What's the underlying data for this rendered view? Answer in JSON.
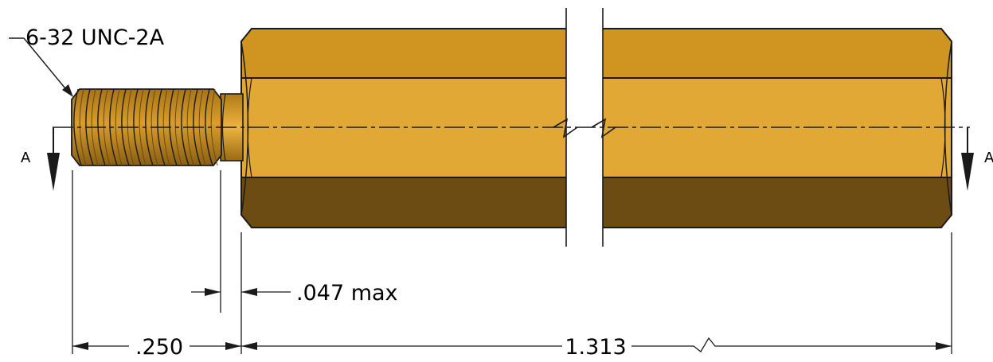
{
  "callouts": {
    "thread_spec": "6-32 UNC-2A"
  },
  "section": {
    "label_left": "A",
    "label_right": "A"
  },
  "dimensions": {
    "thread_length": ".250",
    "shoulder_gap": ".047 max",
    "body_length": "1.313"
  },
  "colors": {
    "brass_top": "#cf9520",
    "brass_mid": "#e2a836",
    "brass_bottom": "#6d4c14",
    "outline": "#1a1a1a"
  }
}
